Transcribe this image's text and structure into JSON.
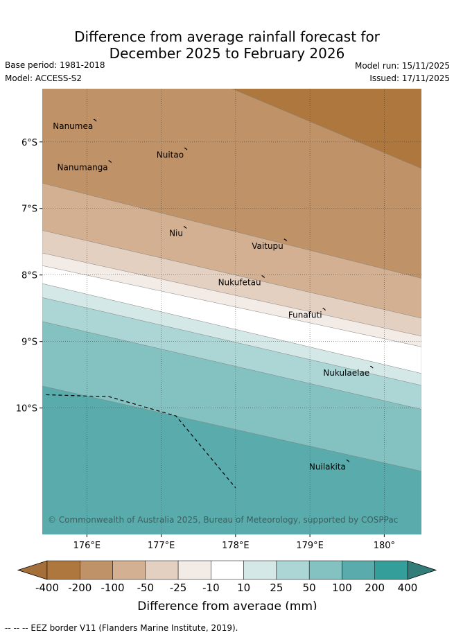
{
  "title": {
    "line1": "Difference from average rainfall forecast for",
    "line2": "December 2025 to February 2026"
  },
  "meta": {
    "base_period": "Base period: 1981-2018",
    "model": "Model: ACCESS-S2",
    "model_run": "Model run: 15/11/2025",
    "issued": "Issued: 17/11/2025"
  },
  "map": {
    "lon_range": [
      175.4,
      180.5
    ],
    "lat_range": [
      -11.9,
      -5.2
    ],
    "lon_ticks": [
      {
        "value": 176,
        "label": "176°E"
      },
      {
        "value": 177,
        "label": "177°E"
      },
      {
        "value": 178,
        "label": "178°E"
      },
      {
        "value": 179,
        "label": "179°E"
      },
      {
        "value": 180,
        "label": "180°"
      }
    ],
    "lat_ticks": [
      {
        "value": -6,
        "label": "6°S"
      },
      {
        "value": -7,
        "label": "7°S"
      },
      {
        "value": -8,
        "label": "8°S"
      },
      {
        "value": -9,
        "label": "9°S"
      },
      {
        "value": -10,
        "label": "10°S"
      }
    ],
    "islands": [
      {
        "name": "Nanumea",
        "lon": 176.12,
        "lat": -5.68
      },
      {
        "name": "Nuitao",
        "lon": 177.34,
        "lat": -6.11
      },
      {
        "name": "Nanumanga",
        "lon": 176.32,
        "lat": -6.3
      },
      {
        "name": "Niu",
        "lon": 177.33,
        "lat": -7.29
      },
      {
        "name": "Vaitupu",
        "lon": 178.68,
        "lat": -7.48
      },
      {
        "name": "Nukufetau",
        "lon": 178.38,
        "lat": -8.03
      },
      {
        "name": "Funafuti",
        "lon": 179.2,
        "lat": -8.52
      },
      {
        "name": "Nukulaelae",
        "lon": 179.84,
        "lat": -9.39
      },
      {
        "name": "Nuilakita",
        "lon": 179.52,
        "lat": -10.8
      }
    ],
    "eez_border": [
      [
        175.45,
        -9.8
      ],
      [
        176.3,
        -9.83
      ],
      [
        177.2,
        -10.12
      ],
      [
        178.0,
        -11.2
      ]
    ],
    "credit": "© Commonwealth of Australia 2025, Bureau of Meteorology, supported by COSPPac"
  },
  "contours": {
    "note": "category boundaries as latitude (deg) at lon 175.4 (west) and 180.5 (east)",
    "bands": [
      {
        "category": "-400 to -200",
        "color": "#ad773e",
        "north": [
          -4.0,
          -4.0
        ],
        "south": [
          -4.0,
          -6.4
        ]
      },
      {
        "category": "-200 to -100",
        "color": "#c09268",
        "north": [
          -4.0,
          -6.4
        ],
        "south": [
          -6.62,
          -8.05
        ]
      },
      {
        "category": "-100 to -50",
        "color": "#d2b091",
        "north": [
          -6.62,
          -8.05
        ],
        "south": [
          -7.33,
          -8.65
        ]
      },
      {
        "category": "-50 to -25",
        "color": "#e4d0c0",
        "north": [
          -7.33,
          -8.65
        ],
        "south": [
          -7.67,
          -8.92
        ]
      },
      {
        "category": "-25 to -10",
        "color": "#f3ebe6",
        "north": [
          -7.67,
          -8.92
        ],
        "south": [
          -7.86,
          -9.08
        ]
      },
      {
        "category": "-10 to 10",
        "color": "#ffffff",
        "north": [
          -7.86,
          -9.08
        ],
        "south": [
          -8.13,
          -9.48
        ]
      },
      {
        "category": "10 to 25",
        "color": "#d4e8e7",
        "north": [
          -8.13,
          -9.48
        ],
        "south": [
          -8.34,
          -9.66
        ]
      },
      {
        "category": "25 to 50",
        "color": "#acd5d5",
        "north": [
          -8.34,
          -9.66
        ],
        "south": [
          -8.7,
          -10.02
        ]
      },
      {
        "category": "50 to 100",
        "color": "#84c2c1",
        "north": [
          -8.7,
          -10.02
        ],
        "south": [
          -9.67,
          -10.95
        ]
      },
      {
        "category": "100 to 200",
        "color": "#5aabab",
        "north": [
          -9.67,
          -10.95
        ],
        "south": [
          -13.0,
          -13.0
        ]
      }
    ]
  },
  "legend": {
    "colors": [
      "#ad773e",
      "#c09268",
      "#d2b091",
      "#e4d0c0",
      "#f3ebe6",
      "#ffffff",
      "#d4e8e7",
      "#acd5d5",
      "#84c2c1",
      "#5aabab",
      "#339e9a"
    ],
    "ticks": [
      "-400",
      "-200",
      "-100",
      "-50",
      "-25",
      "-10",
      "10",
      "25",
      "50",
      "100",
      "200",
      "400"
    ],
    "label": "Difference from average (mm)",
    "under_color": "#a46f38",
    "over_color": "#327c7a"
  },
  "footer": "-- -- -- EEZ border V11 (Flanders Marine Institute, 2019)."
}
